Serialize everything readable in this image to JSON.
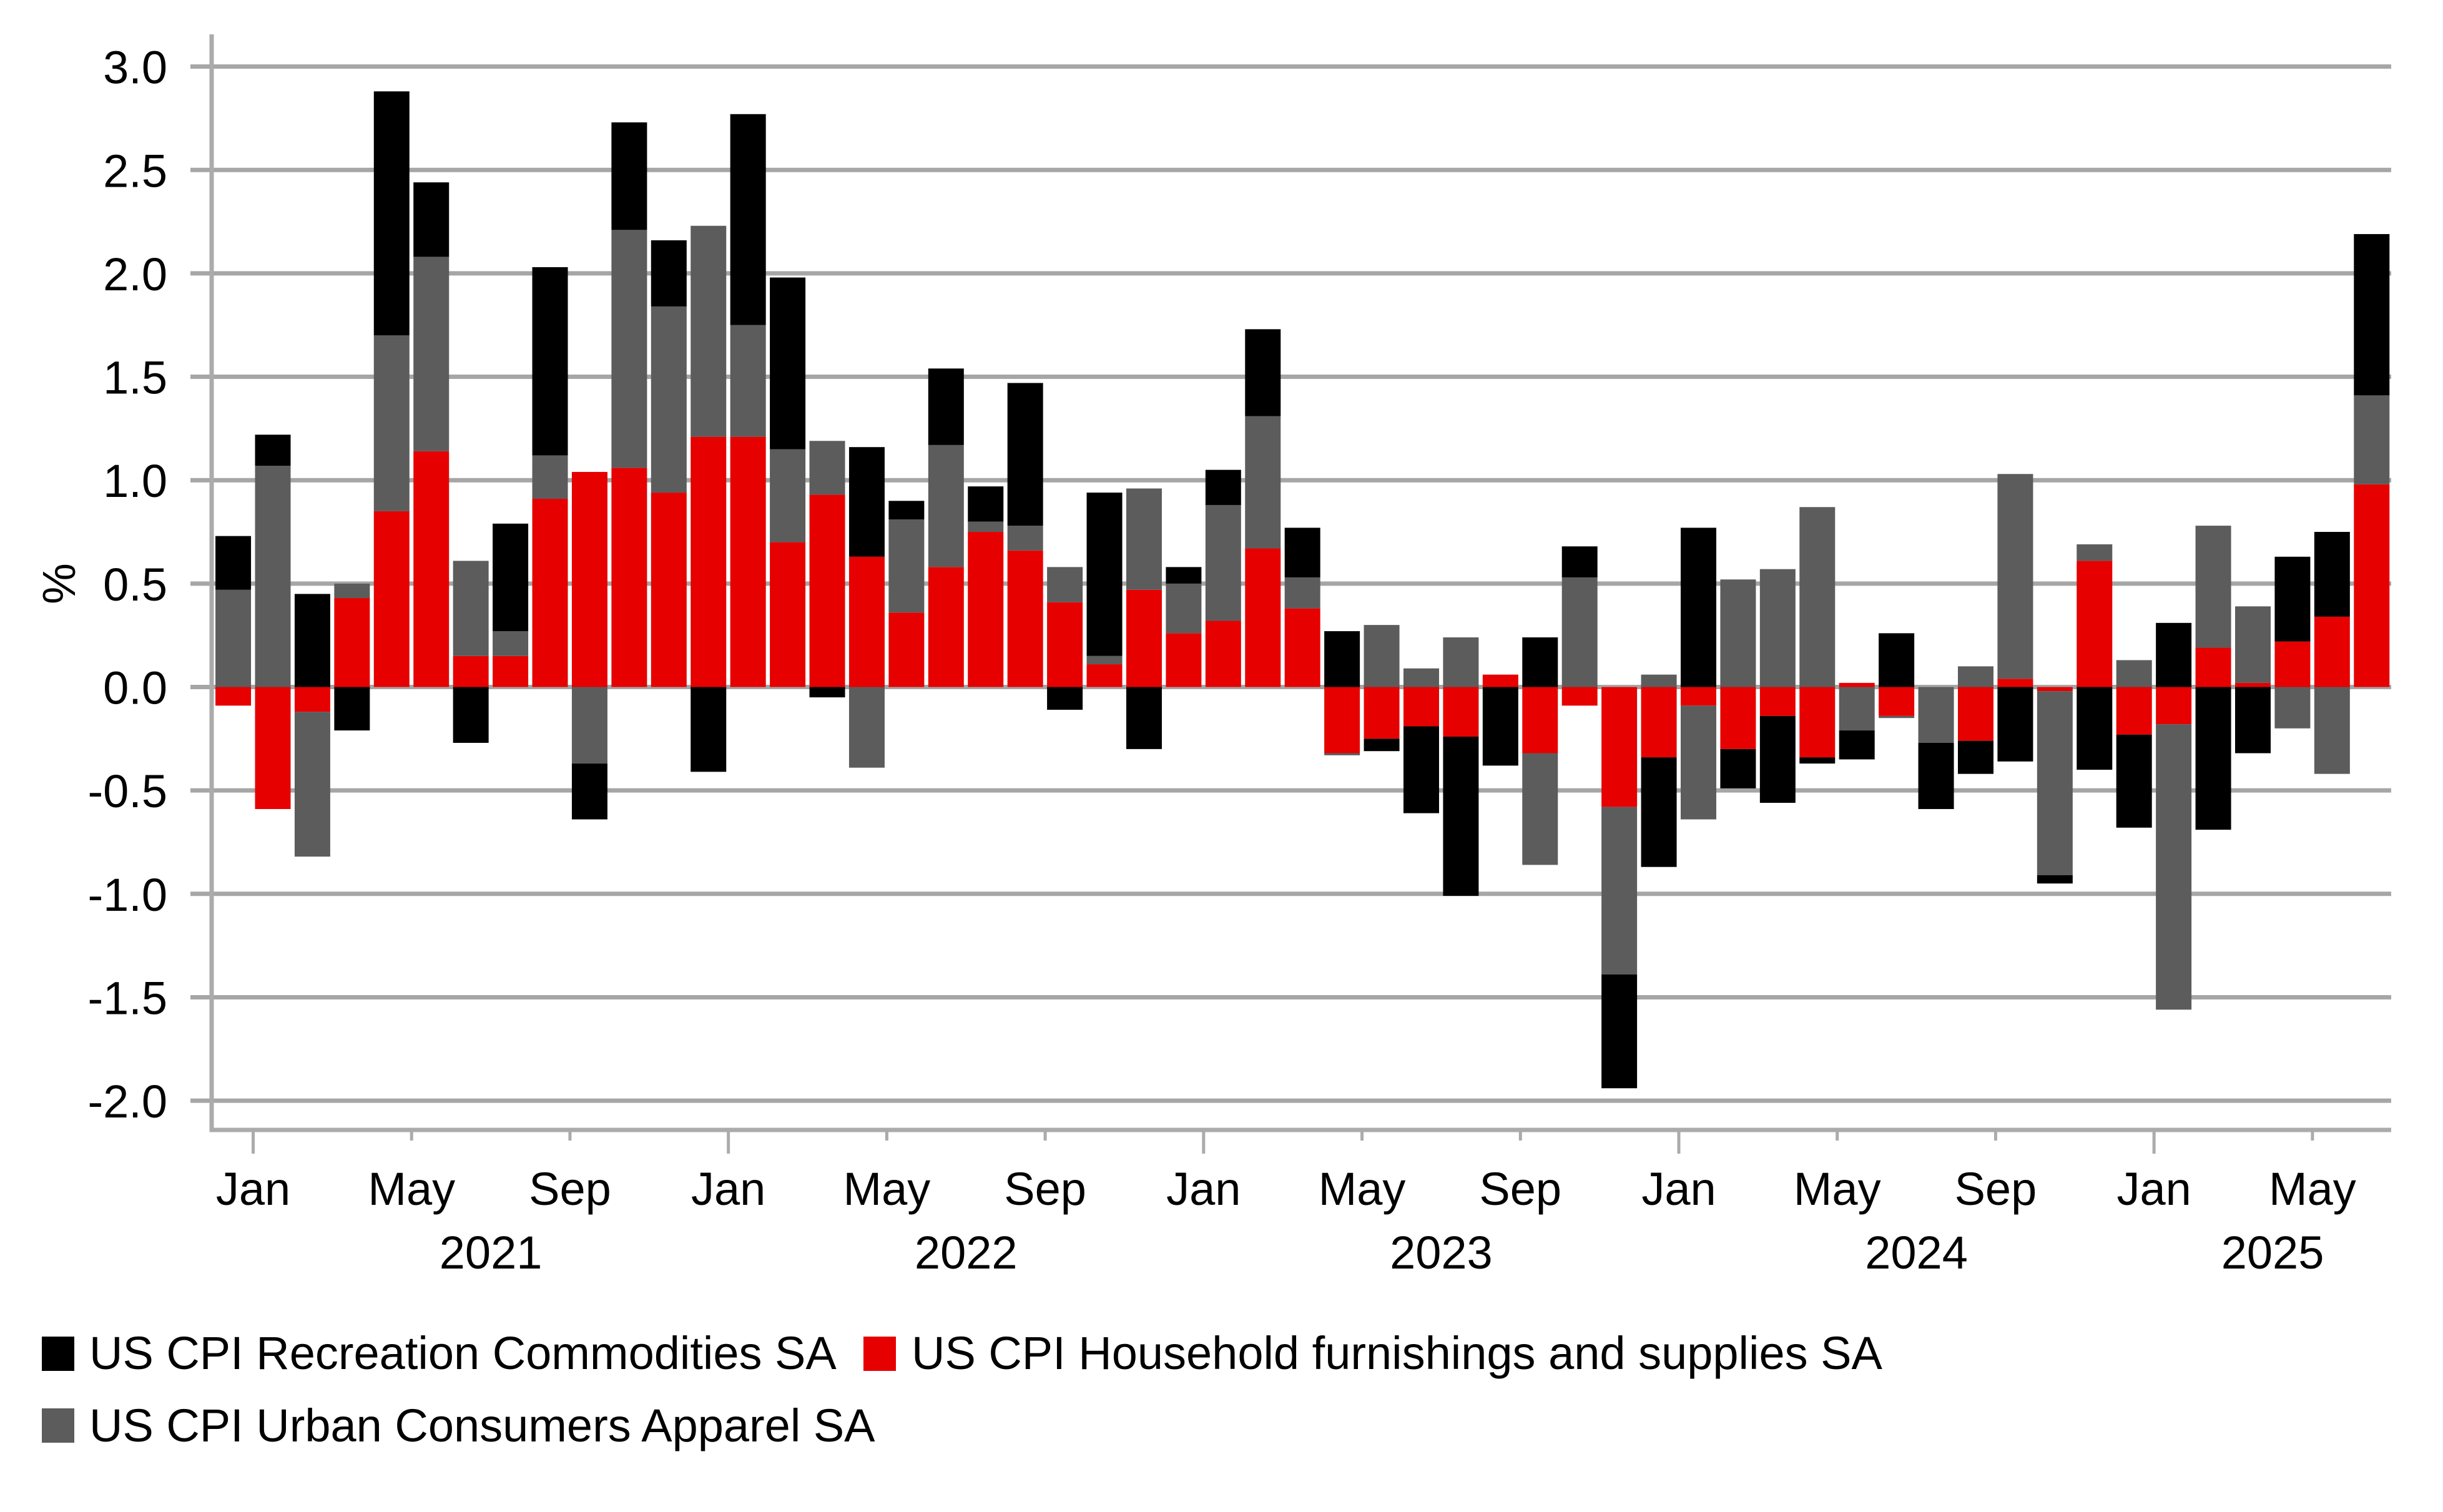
{
  "chart_data": {
    "type": "bar",
    "stacked": true,
    "title": "",
    "xlabel": "",
    "ylabel": "%",
    "ylim": [
      -2.0,
      3.0
    ],
    "grid": true,
    "legend_position": "bottom-left",
    "y_tick_labels": [
      "3.0",
      "2.5",
      "2.0",
      "1.5",
      "1.0",
      "0.5",
      "0.0",
      "-0.5",
      "-1.0",
      "-1.5",
      "-2.0"
    ],
    "x_month_ticks": [
      {
        "label": "Jan",
        "date": "2021-01"
      },
      {
        "label": "May",
        "date": "2021-05"
      },
      {
        "label": "Sep",
        "date": "2021-09"
      },
      {
        "label": "Jan",
        "date": "2022-01"
      },
      {
        "label": "May",
        "date": "2022-05"
      },
      {
        "label": "Sep",
        "date": "2022-09"
      },
      {
        "label": "Jan",
        "date": "2023-01"
      },
      {
        "label": "May",
        "date": "2023-05"
      },
      {
        "label": "Sep",
        "date": "2023-09"
      },
      {
        "label": "Jan",
        "date": "2024-01"
      },
      {
        "label": "May",
        "date": "2024-05"
      },
      {
        "label": "Sep",
        "date": "2024-09"
      },
      {
        "label": "Jan",
        "date": "2025-01"
      },
      {
        "label": "May",
        "date": "2025-05"
      }
    ],
    "x_year_labels": [
      "2021",
      "2022",
      "2023",
      "2024",
      "2025"
    ],
    "categories": [
      "2020-12",
      "2021-01",
      "2021-02",
      "2021-03",
      "2021-04",
      "2021-05",
      "2021-06",
      "2021-07",
      "2021-08",
      "2021-09",
      "2021-10",
      "2021-11",
      "2021-12",
      "2022-01",
      "2022-02",
      "2022-03",
      "2022-04",
      "2022-05",
      "2022-06",
      "2022-07",
      "2022-08",
      "2022-09",
      "2022-10",
      "2022-11",
      "2022-12",
      "2023-01",
      "2023-02",
      "2023-03",
      "2023-04",
      "2023-05",
      "2023-06",
      "2023-07",
      "2023-08",
      "2023-09",
      "2023-10",
      "2023-11",
      "2023-12",
      "2024-01",
      "2024-02",
      "2024-03",
      "2024-04",
      "2024-05",
      "2024-06",
      "2024-07",
      "2024-08",
      "2024-09",
      "2024-10",
      "2024-11",
      "2024-12",
      "2025-01",
      "2025-02",
      "2025-03",
      "2025-04",
      "2025-05",
      "2025-06"
    ],
    "series": [
      {
        "name": "US CPI Recreation Commodities SA",
        "color": "#000000",
        "values": [
          0.26,
          0.15,
          0.45,
          -0.21,
          1.18,
          0.36,
          -0.27,
          0.52,
          0.91,
          -0.27,
          0.52,
          0.32,
          -0.41,
          1.02,
          0.83,
          -0.05,
          0.53,
          0.09,
          0.37,
          0.17,
          0.69,
          -0.11,
          0.79,
          -0.3,
          0.08,
          0.17,
          0.42,
          0.24,
          0.27,
          -0.06,
          -0.42,
          -0.77,
          -0.38,
          0.24,
          0.15,
          -0.55,
          -0.53,
          0.77,
          -0.19,
          -0.42,
          -0.03,
          -0.14,
          0.26,
          -0.32,
          -0.16,
          -0.36,
          -0.04,
          -0.4,
          -0.45,
          0.31,
          -0.69,
          -0.32,
          0.41,
          0.41,
          0.78
        ]
      },
      {
        "name": "US CPI Household furnishings and supplies SA",
        "color": "#e60000",
        "values": [
          -0.09,
          -0.59,
          -0.12,
          0.43,
          0.85,
          1.14,
          0.15,
          0.15,
          0.91,
          1.04,
          1.06,
          0.94,
          1.21,
          1.21,
          0.7,
          0.93,
          0.63,
          0.36,
          0.58,
          0.75,
          0.66,
          0.41,
          0.11,
          0.47,
          0.26,
          0.32,
          0.67,
          0.38,
          -0.32,
          -0.25,
          -0.19,
          -0.24,
          0.06,
          -0.32,
          -0.09,
          -0.58,
          -0.34,
          -0.09,
          -0.3,
          -0.14,
          -0.34,
          0.02,
          -0.14,
          0.0,
          -0.26,
          0.04,
          -0.02,
          0.61,
          -0.23,
          -0.18,
          0.19,
          0.02,
          0.22,
          0.34,
          0.98
        ]
      },
      {
        "name": "US CPI Urban Consumers Apparel SA",
        "color": "#5c5c5c",
        "values": [
          0.47,
          1.07,
          -0.7,
          0.07,
          0.85,
          0.94,
          0.46,
          0.12,
          0.21,
          -0.37,
          1.15,
          0.9,
          1.02,
          0.54,
          0.45,
          0.26,
          -0.39,
          0.45,
          0.59,
          0.05,
          0.12,
          0.17,
          0.04,
          0.49,
          0.24,
          0.56,
          0.64,
          0.15,
          -0.01,
          0.3,
          0.09,
          0.24,
          0.0,
          -0.54,
          0.53,
          -0.81,
          0.06,
          -0.55,
          0.52,
          0.57,
          0.87,
          -0.21,
          -0.01,
          -0.27,
          0.1,
          0.99,
          -0.89,
          0.08,
          0.13,
          -1.38,
          0.59,
          0.37,
          -0.2,
          -0.42,
          0.43
        ]
      }
    ]
  }
}
